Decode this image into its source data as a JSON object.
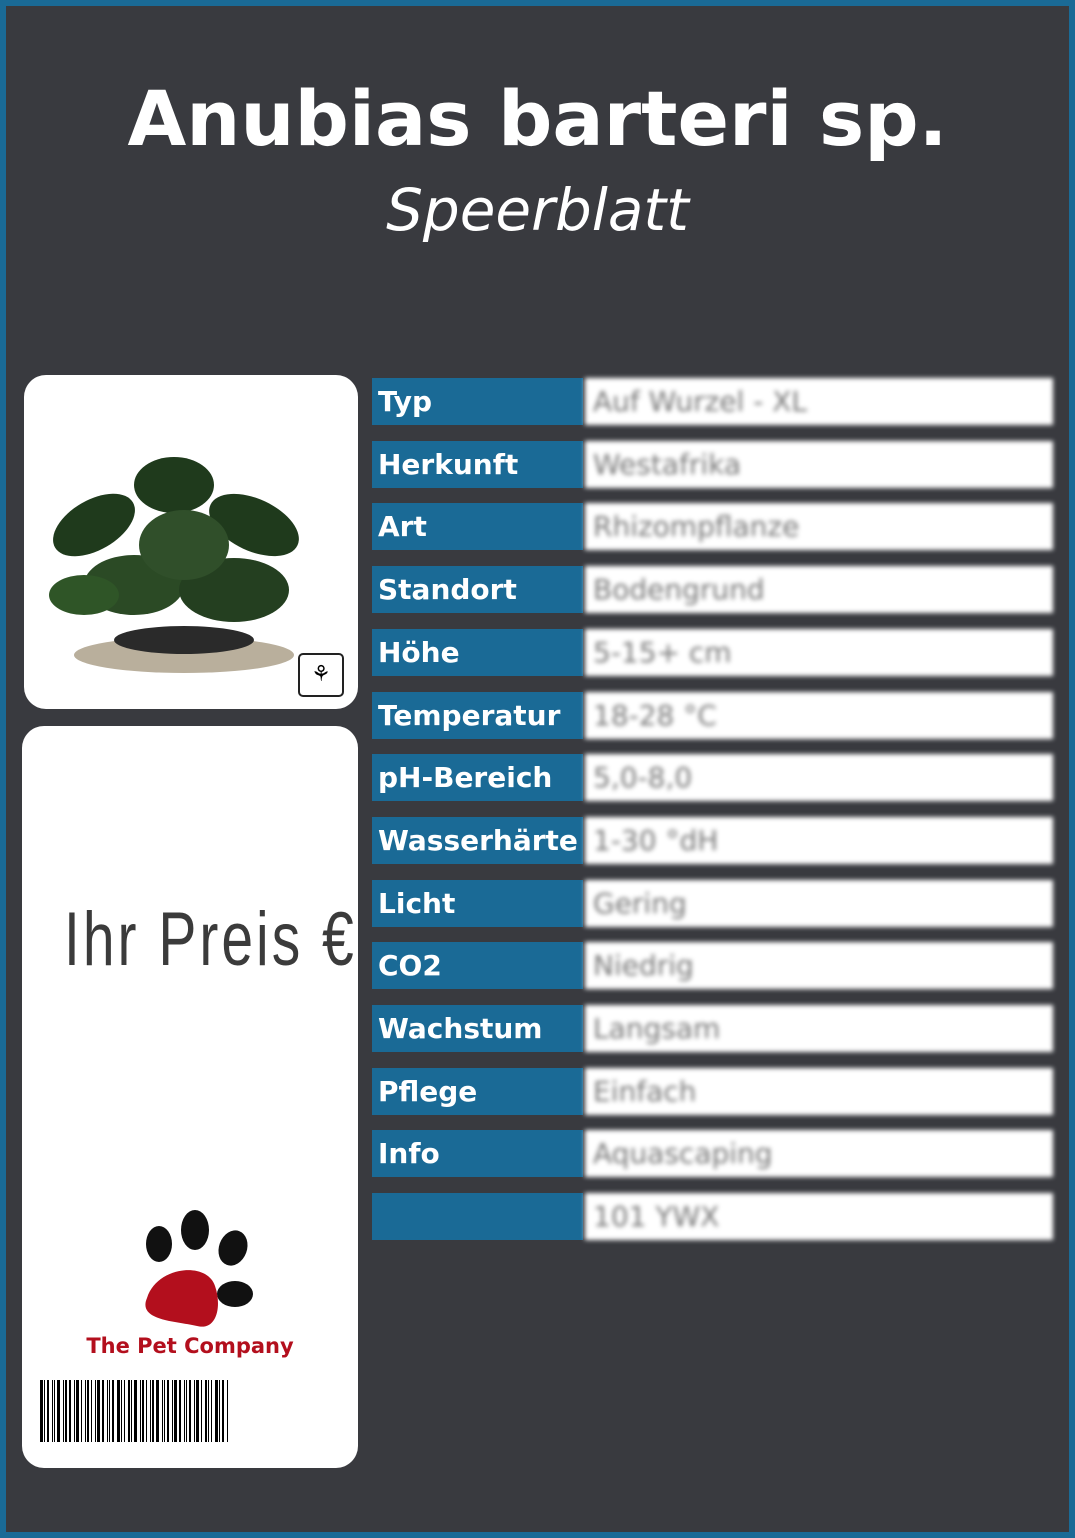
{
  "header": {
    "title": "Anubias barteri sp.",
    "subtitle": "Speerblatt"
  },
  "price_card": {
    "label": "Ihr Preis €",
    "brand": "The Pet Company"
  },
  "image_card": {
    "logo": "tropica"
  },
  "specs": [
    {
      "label": "Typ",
      "value": "Auf Wurzel - XL"
    },
    {
      "label": "Herkunft",
      "value": "Westafrika"
    },
    {
      "label": "Art",
      "value": "Rhizompflanze"
    },
    {
      "label": "Standort",
      "value": "Bodengrund"
    },
    {
      "label": "Höhe",
      "value": "5-15+ cm"
    },
    {
      "label": "Temperatur",
      "value": "18-28 °C"
    },
    {
      "label": "pH-Bereich",
      "value": "5,0-8,0"
    },
    {
      "label": "Wasserhärte",
      "value": "1-30 °dH"
    },
    {
      "label": "Licht",
      "value": "Gering"
    },
    {
      "label": "CO2",
      "value": "Niedrig"
    },
    {
      "label": "Wachstum",
      "value": "Langsam"
    },
    {
      "label": "Pflege",
      "value": "Einfach"
    },
    {
      "label": "Info",
      "value": "Aquascaping"
    },
    {
      "label": "",
      "value": "101 YWX"
    }
  ],
  "colors": {
    "background": "#393a3f",
    "accent": "#1a6a96",
    "brand": "#b30f1d"
  }
}
